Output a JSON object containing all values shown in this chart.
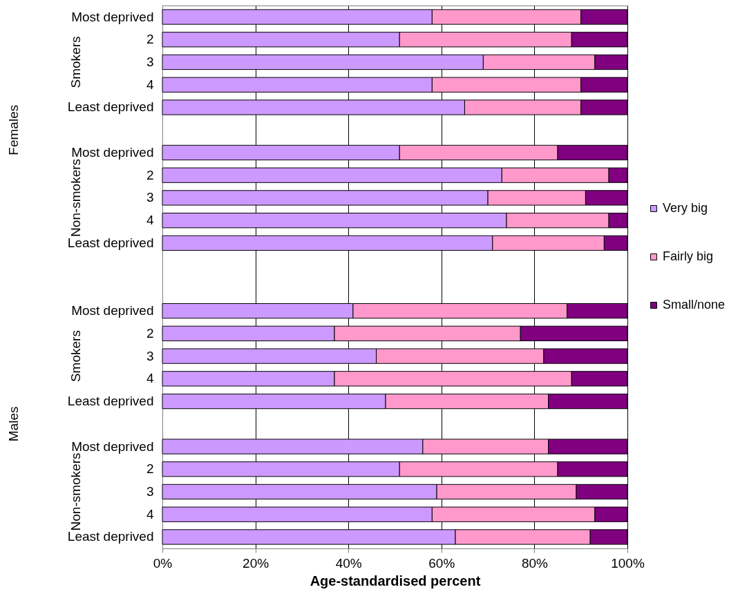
{
  "chart_data": {
    "type": "bar",
    "orientation": "horizontal",
    "stacked": true,
    "categories": [
      "Most deprived",
      "2",
      "3",
      "4",
      "Least deprived",
      null,
      "Most deprived",
      "2",
      "3",
      "4",
      "Least deprived",
      null,
      null,
      "Most deprived",
      "2",
      "3",
      "4",
      "Least deprived",
      null,
      "Most deprived",
      "2",
      "3",
      "4",
      "Least deprived"
    ],
    "series": [
      {
        "name": "Very big",
        "color": "#cc99ff",
        "values": [
          58,
          51,
          69,
          58,
          65,
          null,
          51,
          73,
          70,
          74,
          71,
          null,
          null,
          41,
          37,
          46,
          37,
          48,
          null,
          56,
          51,
          59,
          58,
          63
        ]
      },
      {
        "name": "Fairly big",
        "color": "#ff99cc",
        "values": [
          32,
          37,
          24,
          32,
          25,
          null,
          34,
          23,
          21,
          22,
          24,
          null,
          null,
          46,
          40,
          36,
          51,
          35,
          null,
          27,
          34,
          30,
          35,
          29
        ]
      },
      {
        "name": "Small/none",
        "color": "#800080",
        "values": [
          10,
          12,
          7,
          10,
          10,
          null,
          15,
          4,
          9,
          4,
          5,
          null,
          null,
          13,
          23,
          18,
          12,
          17,
          null,
          17,
          15,
          11,
          7,
          8
        ]
      }
    ],
    "xlabel": "Age-standardised percent",
    "xlim": [
      0,
      100
    ],
    "xticks": [
      {
        "value": 0,
        "label": "0%"
      },
      {
        "value": 20,
        "label": "20%"
      },
      {
        "value": 40,
        "label": "40%"
      },
      {
        "value": 60,
        "label": "60%"
      },
      {
        "value": 80,
        "label": "80%"
      },
      {
        "value": 100,
        "label": "100%"
      }
    ],
    "grid": "x",
    "legend": "right",
    "annotations": [
      "Smokers",
      "Non-smokers",
      "Smokers",
      "Non-smokers",
      "Females",
      "Males"
    ]
  }
}
